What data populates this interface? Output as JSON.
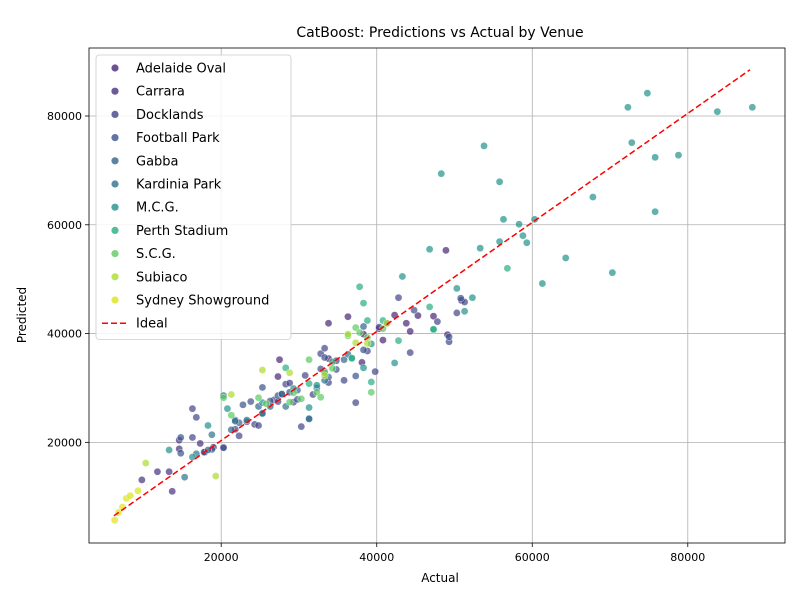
{
  "chart_data": {
    "type": "scatter",
    "title": "CatBoost: Predictions vs Actual by Venue",
    "xlabel": "Actual",
    "ylabel": "Predicted",
    "xlim": [
      3000,
      92500
    ],
    "ylim": [
      1500,
      92500
    ],
    "xticks": [
      20000,
      40000,
      60000,
      80000
    ],
    "yticks": [
      20000,
      40000,
      60000,
      80000
    ],
    "grid": true,
    "legend_position": "top-left",
    "ideal_line": {
      "label": "Ideal",
      "color": "#ff0000",
      "style": "dashed",
      "from": [
        6200,
        6500
      ],
      "to": [
        88000,
        88500
      ]
    },
    "series": [
      {
        "name": "Adelaide Oval",
        "color": "#482575",
        "points": [
          [
            27500,
            35200
          ],
          [
            27300,
            32100
          ],
          [
            33800,
            41900
          ],
          [
            36300,
            43100
          ],
          [
            38300,
            39900
          ],
          [
            38100,
            34700
          ],
          [
            40300,
            40900
          ],
          [
            40800,
            38800
          ],
          [
            42300,
            43400
          ],
          [
            43800,
            41900
          ],
          [
            44300,
            40400
          ],
          [
            45300,
            43300
          ],
          [
            47300,
            43200
          ],
          [
            48900,
            55300
          ],
          [
            50900,
            46100
          ],
          [
            49100,
            39800
          ],
          [
            33800,
            35400
          ]
        ]
      },
      {
        "name": "Carrara",
        "color": "#46327e",
        "points": [
          [
            9800,
            13100
          ],
          [
            11800,
            14600
          ],
          [
            13300,
            14600
          ],
          [
            13700,
            11000
          ],
          [
            14600,
            20400
          ],
          [
            14600,
            18800
          ],
          [
            17300,
            19800
          ],
          [
            17900,
            18200
          ],
          [
            19000,
            19100
          ],
          [
            20300,
            19100
          ]
        ]
      },
      {
        "name": "Docklands",
        "color": "#414487",
        "points": [
          [
            16300,
            26200
          ],
          [
            16800,
            24600
          ],
          [
            16300,
            20900
          ],
          [
            21800,
            24100
          ],
          [
            21800,
            22400
          ],
          [
            22300,
            21200
          ],
          [
            23300,
            23800
          ],
          [
            24300,
            23300
          ],
          [
            24800,
            23100
          ],
          [
            25300,
            25400
          ],
          [
            26800,
            27800
          ],
          [
            27300,
            27500
          ],
          [
            28300,
            30700
          ],
          [
            28800,
            30900
          ],
          [
            29300,
            27400
          ],
          [
            30300,
            22900
          ],
          [
            31300,
            24400
          ],
          [
            31800,
            28800
          ],
          [
            33300,
            33000
          ],
          [
            33800,
            31000
          ],
          [
            35800,
            31400
          ],
          [
            37300,
            27300
          ],
          [
            38800,
            36800
          ],
          [
            39800,
            33000
          ],
          [
            40300,
            41200
          ],
          [
            42800,
            46600
          ],
          [
            44300,
            36500
          ],
          [
            47800,
            42200
          ],
          [
            49300,
            38500
          ],
          [
            50300,
            43800
          ],
          [
            51300,
            45800
          ],
          [
            32800,
            36300
          ],
          [
            33300,
            37300
          ],
          [
            30800,
            32300
          ],
          [
            34800,
            35000
          ]
        ]
      },
      {
        "name": "Football Park",
        "color": "#3b528b",
        "points": [
          [
            14800,
            20900
          ],
          [
            14800,
            18000
          ],
          [
            17800,
            18200
          ],
          [
            18800,
            18700
          ],
          [
            20300,
            19000
          ],
          [
            22800,
            26900
          ],
          [
            23800,
            27500
          ],
          [
            25300,
            30100
          ],
          [
            26300,
            27600
          ],
          [
            27300,
            28600
          ],
          [
            27800,
            28800
          ],
          [
            28800,
            29200
          ],
          [
            29800,
            27900
          ],
          [
            32800,
            33500
          ],
          [
            33300,
            35600
          ],
          [
            34800,
            33400
          ],
          [
            37300,
            32200
          ],
          [
            38300,
            37000
          ],
          [
            41300,
            41900
          ],
          [
            44800,
            44300
          ],
          [
            49300,
            39400
          ],
          [
            50800,
            46500
          ]
        ]
      },
      {
        "name": "Gabba",
        "color": "#33638d",
        "points": [
          [
            18300,
            18600
          ],
          [
            21300,
            22300
          ],
          [
            22300,
            23600
          ],
          [
            24800,
            26600
          ],
          [
            26300,
            26600
          ],
          [
            27800,
            28900
          ],
          [
            29800,
            29600
          ],
          [
            32300,
            30000
          ],
          [
            33800,
            32000
          ],
          [
            35800,
            35200
          ],
          [
            38300,
            41300
          ]
        ]
      },
      {
        "name": "Kardinia Park",
        "color": "#2c728e",
        "points": [
          [
            15300,
            13600
          ],
          [
            16800,
            17900
          ],
          [
            18800,
            21400
          ],
          [
            20300,
            28600
          ],
          [
            21800,
            23900
          ],
          [
            23300,
            24100
          ],
          [
            25300,
            25300
          ],
          [
            28300,
            26600
          ],
          [
            31300,
            24300
          ],
          [
            33300,
            31400
          ],
          [
            36300,
            36200
          ]
        ]
      },
      {
        "name": "M.C.G.",
        "color": "#21918c",
        "points": [
          [
            13300,
            18600
          ],
          [
            16300,
            17300
          ],
          [
            18300,
            23100
          ],
          [
            20800,
            26200
          ],
          [
            25300,
            27300
          ],
          [
            29300,
            29900
          ],
          [
            31300,
            26400
          ],
          [
            32300,
            30500
          ],
          [
            36800,
            35400
          ],
          [
            38300,
            33700
          ],
          [
            39300,
            38100
          ],
          [
            42300,
            34600
          ],
          [
            43300,
            50500
          ],
          [
            46800,
            55500
          ],
          [
            47300,
            40700
          ],
          [
            50300,
            48300
          ],
          [
            51300,
            44100
          ],
          [
            52300,
            46600
          ],
          [
            53300,
            55700
          ],
          [
            53800,
            74500
          ],
          [
            55800,
            56900
          ],
          [
            55800,
            67900
          ],
          [
            56300,
            61000
          ],
          [
            58300,
            60100
          ],
          [
            58800,
            58000
          ],
          [
            59300,
            56700
          ],
          [
            60300,
            61000
          ],
          [
            61300,
            49200
          ],
          [
            64300,
            53900
          ],
          [
            67800,
            65100
          ],
          [
            70300,
            51200
          ],
          [
            72300,
            81600
          ],
          [
            72800,
            75100
          ],
          [
            74800,
            84200
          ],
          [
            75800,
            72400
          ],
          [
            75800,
            62400
          ],
          [
            78800,
            72800
          ],
          [
            83800,
            80800
          ],
          [
            88300,
            81600
          ],
          [
            48300,
            69400
          ]
        ]
      },
      {
        "name": "Perth Stadium",
        "color": "#28ae80",
        "points": [
          [
            28300,
            33700
          ],
          [
            31300,
            30800
          ],
          [
            34300,
            34800
          ],
          [
            36800,
            35500
          ],
          [
            37800,
            48600
          ],
          [
            38300,
            45600
          ],
          [
            38800,
            42400
          ],
          [
            39300,
            31100
          ],
          [
            40800,
            42400
          ],
          [
            42800,
            38700
          ],
          [
            46800,
            44900
          ],
          [
            47300,
            40800
          ],
          [
            56800,
            52000
          ]
        ]
      },
      {
        "name": "S.C.G.",
        "color": "#5ec962",
        "points": [
          [
            20300,
            28200
          ],
          [
            21300,
            25000
          ],
          [
            24800,
            28200
          ],
          [
            25800,
            27100
          ],
          [
            28800,
            27400
          ],
          [
            29300,
            29100
          ],
          [
            30300,
            28000
          ],
          [
            31300,
            35200
          ],
          [
            32300,
            29200
          ],
          [
            33300,
            32800
          ],
          [
            34300,
            33600
          ],
          [
            36300,
            39600
          ],
          [
            37300,
            41100
          ],
          [
            37800,
            40200
          ],
          [
            38800,
            39300
          ],
          [
            39300,
            29200
          ],
          [
            40800,
            40900
          ],
          [
            32800,
            28300
          ]
        ]
      },
      {
        "name": "Subiaco",
        "color": "#addc30",
        "points": [
          [
            10300,
            16200
          ],
          [
            19300,
            13800
          ],
          [
            21300,
            28800
          ],
          [
            25300,
            33300
          ],
          [
            28800,
            32800
          ],
          [
            33300,
            32300
          ],
          [
            36300,
            39900
          ],
          [
            37300,
            38300
          ],
          [
            38800,
            38200
          ],
          [
            41300,
            41900
          ]
        ]
      },
      {
        "name": "Sydney Showground",
        "color": "#dde318",
        "points": [
          [
            6300,
            5700
          ],
          [
            6800,
            7100
          ],
          [
            7300,
            8100
          ],
          [
            7800,
            9700
          ],
          [
            8300,
            10200
          ],
          [
            9300,
            11100
          ]
        ]
      }
    ]
  }
}
